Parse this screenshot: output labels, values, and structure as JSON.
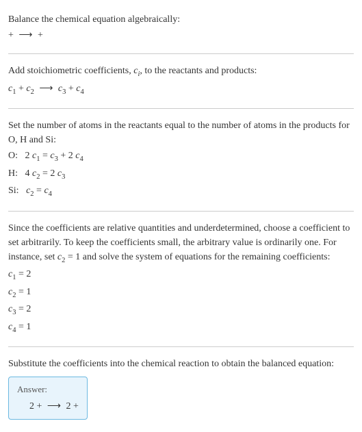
{
  "background_color": "#ffffff",
  "text_color": "#333333",
  "divider_color": "#cccccc",
  "font_family": "Georgia, 'Times New Roman', serif",
  "base_fontsize": 14,
  "answer_box": {
    "border_color": "#6bb8e0",
    "background_color": "#e8f4fc",
    "border_radius": 4
  },
  "sections": {
    "intro": {
      "line1": "Balance the chemical equation algebraically:",
      "line2_pre": " + ",
      "line2_arrow": "⟶",
      "line2_post": " + "
    },
    "stoich": {
      "line1_pre": "Add stoichiometric coefficients, ",
      "line1_ci": "c",
      "line1_ci_sub": "i",
      "line1_post": ", to the reactants and products:",
      "eq_c1": "c",
      "eq_c1_sub": "1",
      "eq_plus1": " + ",
      "eq_c2": "c",
      "eq_c2_sub": "2",
      "eq_arrow": "⟶",
      "eq_c3": "c",
      "eq_c3_sub": "3",
      "eq_plus2": " + ",
      "eq_c4": "c",
      "eq_c4_sub": "4"
    },
    "atoms": {
      "line1": "Set the number of atoms in the reactants equal to the number of atoms in the products for O, H and Si:",
      "rows": [
        {
          "elem": "O:",
          "lhs_coef": "2 ",
          "lhs_c": "c",
          "lhs_sub": "1",
          "eq": " = ",
          "r1_c": "c",
          "r1_sub": "3",
          "plus": " + ",
          "r2_coef": "2 ",
          "r2_c": "c",
          "r2_sub": "4"
        },
        {
          "elem": "H:",
          "lhs_coef": "4 ",
          "lhs_c": "c",
          "lhs_sub": "2",
          "eq": " = ",
          "r1_coef": "2 ",
          "r1_c": "c",
          "r1_sub": "3"
        },
        {
          "elem": "Si:",
          "lhs_c": "c",
          "lhs_sub": "2",
          "eq": " = ",
          "r1_c": "c",
          "r1_sub": "4"
        }
      ]
    },
    "solve": {
      "line1_a": "Since the coefficients are relative quantities and underdetermined, choose a coefficient to set arbitrarily. To keep the coefficients small, the arbitrary value is ordinarily one. For instance, set ",
      "line1_c": "c",
      "line1_csub": "2",
      "line1_b": " = 1 and solve the system of equations for the remaining coefficients:",
      "results": [
        {
          "c": "c",
          "sub": "1",
          "eq": " = 2"
        },
        {
          "c": "c",
          "sub": "2",
          "eq": " = 1"
        },
        {
          "c": "c",
          "sub": "3",
          "eq": " = 2"
        },
        {
          "c": "c",
          "sub": "4",
          "eq": " = 1"
        }
      ]
    },
    "substitute": {
      "line1": "Substitute the coefficients into the chemical reaction to obtain the balanced equation:"
    },
    "answer": {
      "label": "Answer:",
      "pre": "2 + ",
      "arrow": "⟶",
      "post": " 2 + "
    }
  }
}
